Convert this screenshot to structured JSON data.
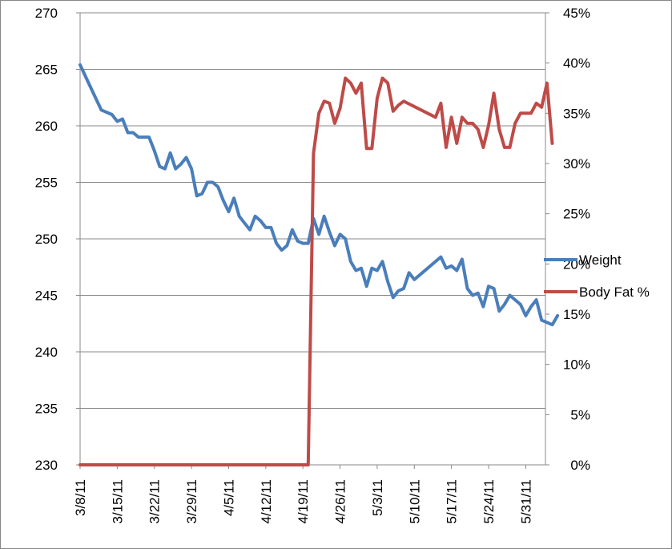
{
  "chart_data": {
    "type": "line",
    "title": "",
    "xlabel": "",
    "ylabel": "",
    "grid": true,
    "legend_placement": "right",
    "x_date_range": [
      "3/8/11",
      "6/4/11"
    ],
    "x_tick_labels": [
      "3/8/11",
      "3/15/11",
      "3/22/11",
      "3/29/11",
      "4/5/11",
      "4/12/11",
      "4/19/11",
      "4/26/11",
      "5/3/11",
      "5/10/11",
      "5/17/11",
      "5/24/11",
      "5/31/11"
    ],
    "y_left": {
      "min": 230,
      "max": 270,
      "ticks": [
        "230",
        "235",
        "240",
        "245",
        "250",
        "255",
        "260",
        "265",
        "270"
      ]
    },
    "y_right": {
      "min": 0,
      "max": 45,
      "ticks": [
        "0%",
        "5%",
        "10%",
        "15%",
        "20%",
        "25%",
        "30%",
        "35%",
        "40%",
        "45%"
      ]
    },
    "series": [
      {
        "name": "Weight",
        "color": "#4a7ebb",
        "axis": "left",
        "points": [
          [
            "3/8/11",
            265.4
          ],
          [
            "3/10/11",
            263.4
          ],
          [
            "3/12/11",
            261.4
          ],
          [
            "3/14/11",
            261.0
          ],
          [
            "3/15/11",
            260.4
          ],
          [
            "3/16/11",
            260.6
          ],
          [
            "3/17/11",
            259.4
          ],
          [
            "3/18/11",
            259.4
          ],
          [
            "3/19/11",
            259.0
          ],
          [
            "3/20/11",
            259.0
          ],
          [
            "3/21/11",
            259.0
          ],
          [
            "3/22/11",
            257.8
          ],
          [
            "3/23/11",
            256.4
          ],
          [
            "3/24/11",
            256.2
          ],
          [
            "3/25/11",
            257.6
          ],
          [
            "3/26/11",
            256.2
          ],
          [
            "3/27/11",
            256.6
          ],
          [
            "3/28/11",
            257.2
          ],
          [
            "3/29/11",
            256.2
          ],
          [
            "3/30/11",
            253.8
          ],
          [
            "3/31/11",
            254.0
          ],
          [
            "4/1/11",
            255.0
          ],
          [
            "4/2/11",
            255.0
          ],
          [
            "4/3/11",
            254.6
          ],
          [
            "4/4/11",
            253.4
          ],
          [
            "4/5/11",
            252.4
          ],
          [
            "4/6/11",
            253.6
          ],
          [
            "4/7/11",
            252.0
          ],
          [
            "4/8/11",
            251.4
          ],
          [
            "4/9/11",
            250.8
          ],
          [
            "4/10/11",
            252.0
          ],
          [
            "4/11/11",
            251.6
          ],
          [
            "4/12/11",
            251.0
          ],
          [
            "4/13/11",
            251.0
          ],
          [
            "4/14/11",
            249.6
          ],
          [
            "4/15/11",
            249.0
          ],
          [
            "4/16/11",
            249.4
          ],
          [
            "4/17/11",
            250.8
          ],
          [
            "4/18/11",
            249.8
          ],
          [
            "4/19/11",
            249.6
          ],
          [
            "4/20/11",
            249.6
          ],
          [
            "4/21/11",
            251.8
          ],
          [
            "4/22/11",
            250.4
          ],
          [
            "4/23/11",
            252.0
          ],
          [
            "4/24/11",
            250.6
          ],
          [
            "4/25/11",
            249.4
          ],
          [
            "4/26/11",
            250.4
          ],
          [
            "4/27/11",
            250.0
          ],
          [
            "4/28/11",
            248.0
          ],
          [
            "4/29/11",
            247.2
          ],
          [
            "4/30/11",
            247.4
          ],
          [
            "5/1/11",
            245.8
          ],
          [
            "5/2/11",
            247.4
          ],
          [
            "5/3/11",
            247.2
          ],
          [
            "5/4/11",
            248.0
          ],
          [
            "5/5/11",
            246.2
          ],
          [
            "5/6/11",
            244.8
          ],
          [
            "5/7/11",
            245.4
          ],
          [
            "5/8/11",
            245.6
          ],
          [
            "5/9/11",
            247.0
          ],
          [
            "5/10/11",
            246.4
          ],
          [
            "5/15/11",
            248.4
          ],
          [
            "5/16/11",
            247.4
          ],
          [
            "5/17/11",
            247.6
          ],
          [
            "5/18/11",
            247.2
          ],
          [
            "5/19/11",
            248.2
          ],
          [
            "5/20/11",
            245.6
          ],
          [
            "5/21/11",
            245.0
          ],
          [
            "5/22/11",
            245.2
          ],
          [
            "5/23/11",
            244.0
          ],
          [
            "5/24/11",
            245.8
          ],
          [
            "5/25/11",
            245.6
          ],
          [
            "5/26/11",
            243.6
          ],
          [
            "5/27/11",
            244.2
          ],
          [
            "5/28/11",
            245.0
          ],
          [
            "5/29/11",
            244.6
          ],
          [
            "5/30/11",
            244.2
          ],
          [
            "5/31/11",
            243.2
          ],
          [
            "6/1/11",
            244.0
          ],
          [
            "6/2/11",
            244.6
          ],
          [
            "6/3/11",
            242.8
          ],
          [
            "6/4/11",
            242.6
          ],
          [
            "6/5/11",
            242.4
          ],
          [
            "6/6/11",
            243.2
          ]
        ]
      },
      {
        "name": "Body Fat %",
        "color": "#be4b48",
        "axis": "right",
        "points": [
          [
            "3/8/11",
            0
          ],
          [
            "4/20/11",
            0
          ],
          [
            "4/21/11",
            31.0
          ],
          [
            "4/22/11",
            35.0
          ],
          [
            "4/23/11",
            36.2
          ],
          [
            "4/24/11",
            36.0
          ],
          [
            "4/25/11",
            34.0
          ],
          [
            "4/26/11",
            35.5
          ],
          [
            "4/27/11",
            38.5
          ],
          [
            "4/28/11",
            38.0
          ],
          [
            "4/29/11",
            37.0
          ],
          [
            "4/30/11",
            38.0
          ],
          [
            "5/1/11",
            31.5
          ],
          [
            "5/2/11",
            31.5
          ],
          [
            "5/3/11",
            36.5
          ],
          [
            "5/4/11",
            38.5
          ],
          [
            "5/5/11",
            38.0
          ],
          [
            "5/6/11",
            35.2
          ],
          [
            "5/7/11",
            35.8
          ],
          [
            "5/8/11",
            36.2
          ],
          [
            "5/14/11",
            34.6
          ],
          [
            "5/15/11",
            36.0
          ],
          [
            "5/16/11",
            31.6
          ],
          [
            "5/17/11",
            34.6
          ],
          [
            "5/18/11",
            32.0
          ],
          [
            "5/19/11",
            34.6
          ],
          [
            "5/20/11",
            34.0
          ],
          [
            "5/21/11",
            34.0
          ],
          [
            "5/22/11",
            33.4
          ],
          [
            "5/23/11",
            31.6
          ],
          [
            "5/24/11",
            33.8
          ],
          [
            "5/25/11",
            37.0
          ],
          [
            "5/26/11",
            33.4
          ],
          [
            "5/27/11",
            31.6
          ],
          [
            "5/28/11",
            31.6
          ],
          [
            "5/29/11",
            34.0
          ],
          [
            "5/30/11",
            35.0
          ],
          [
            "5/31/11",
            35.0
          ],
          [
            "6/1/11",
            35.0
          ],
          [
            "6/2/11",
            36.0
          ],
          [
            "6/3/11",
            35.6
          ],
          [
            "6/4/11",
            38.0
          ],
          [
            "6/5/11",
            32.0
          ]
        ]
      }
    ]
  }
}
